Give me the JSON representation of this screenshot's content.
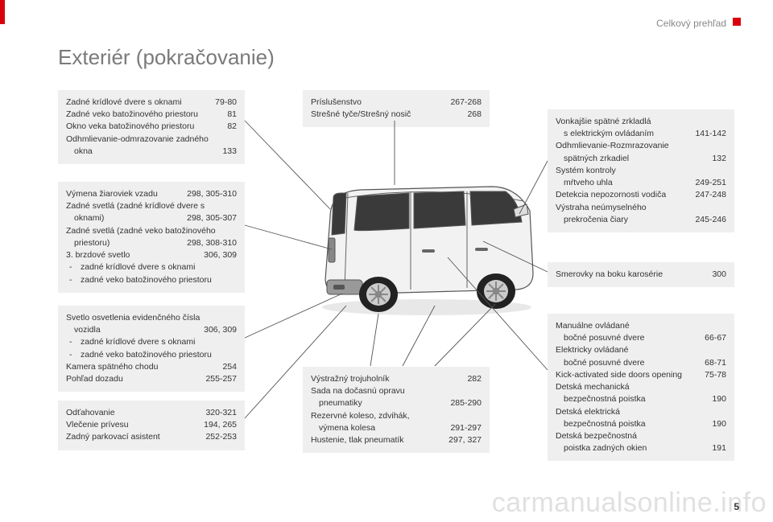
{
  "header": {
    "section": "Celkový prehľad"
  },
  "title": "Exteriér (pokračovanie)",
  "pageNumber": "5",
  "watermark": "carmanualsonline.info",
  "colors": {
    "accent": "#d9000d",
    "box_bg": "#efefef",
    "text": "#333333",
    "muted": "#7a7a7a"
  },
  "boxes": {
    "b1": {
      "rows": [
        {
          "label": "Zadné krídlové dvere s oknami",
          "page": "79-80"
        },
        {
          "label": "Zadné veko batožinového priestoru",
          "page": "81"
        },
        {
          "label": "Okno veka batožinového priestoru",
          "page": "82"
        },
        {
          "label": "Odhmlievanie-odmrazovanie zadného",
          "page": ""
        },
        {
          "label": "okna",
          "page": "133",
          "sub": true
        }
      ]
    },
    "b2": {
      "rows": [
        {
          "label": "Výmena žiaroviek vzadu",
          "page": "298, 305-310"
        },
        {
          "label": "Zadné svetlá (zadné krídlové dvere s",
          "page": ""
        },
        {
          "label": "oknami)",
          "page": "298, 305-307",
          "sub": true
        },
        {
          "label": "Zadné svetlá (zadné veko batožinového",
          "page": ""
        },
        {
          "label": "priestoru)",
          "page": "298, 308-310",
          "sub": true
        },
        {
          "label": "3. brzdové svetlo",
          "page": "306, 309"
        },
        {
          "label": "zadné krídlové dvere s oknami",
          "page": "",
          "bullet": true
        },
        {
          "label": "zadné veko batožinového priestoru",
          "page": "",
          "bullet": true
        }
      ]
    },
    "b3": {
      "rows": [
        {
          "label": "Svetlo osvetlenia evidenčného čísla",
          "page": ""
        },
        {
          "label": "vozidla",
          "page": "306, 309",
          "sub": true
        },
        {
          "label": "zadné krídlové dvere s oknami",
          "page": "",
          "bullet": true
        },
        {
          "label": "zadné veko batožinového priestoru",
          "page": "",
          "bullet": true
        },
        {
          "label": "Kamera spätného chodu",
          "page": "254"
        },
        {
          "label": "Pohľad dozadu",
          "page": "255-257"
        }
      ]
    },
    "b4": {
      "rows": [
        {
          "label": "Odťahovanie",
          "page": "320-321"
        },
        {
          "label": "Vlečenie prívesu",
          "page": "194, 265"
        },
        {
          "label": "Zadný parkovací asistent",
          "page": "252-253"
        }
      ]
    },
    "b5": {
      "rows": [
        {
          "label": "Príslušenstvo",
          "page": "267-268"
        },
        {
          "label": "Strešné tyče/Strešný nosič",
          "page": "268"
        }
      ]
    },
    "b6": {
      "rows": [
        {
          "label": "Výstražný trojuholník",
          "page": "282"
        },
        {
          "label": "Sada na dočasnú opravu",
          "page": ""
        },
        {
          "label": "pneumatiky",
          "page": "285-290",
          "sub": true
        },
        {
          "label": "Rezervné koleso, zdvihák,",
          "page": ""
        },
        {
          "label": "výmena kolesa",
          "page": "291-297",
          "sub": true
        },
        {
          "label": "Hustenie, tlak pneumatík",
          "page": "297, 327"
        }
      ]
    },
    "b7": {
      "rows": [
        {
          "label": "Vonkajšie spätné zrkladlá",
          "page": ""
        },
        {
          "label": "s elektrickým ovládaním",
          "page": "141-142",
          "sub": true
        },
        {
          "label": "Odhmlievanie-Rozmrazovanie",
          "page": ""
        },
        {
          "label": "spätných zrkadiel",
          "page": "132",
          "sub": true
        },
        {
          "label": "Systém kontroly",
          "page": ""
        },
        {
          "label": "mŕtveho uhla",
          "page": "249-251",
          "sub": true
        },
        {
          "label": "Detekcia nepozornosti vodiča",
          "page": "247-248"
        },
        {
          "label": "Výstraha neúmyselného",
          "page": ""
        },
        {
          "label": "prekročenia čiary",
          "page": "245-246",
          "sub": true
        }
      ]
    },
    "b8": {
      "rows": [
        {
          "label": "Smerovky na boku karosérie",
          "page": "300"
        }
      ]
    },
    "b9": {
      "rows": [
        {
          "label": "Manuálne ovládané",
          "page": ""
        },
        {
          "label": "bočné posuvné dvere",
          "page": "66-67",
          "sub": true
        },
        {
          "label": "Elektricky ovládané",
          "page": ""
        },
        {
          "label": "bočné posuvné dvere",
          "page": "68-71",
          "sub": true
        },
        {
          "label": "Kick-activated side doors opening",
          "page": "75-78"
        },
        {
          "label": "Detská mechanická",
          "page": ""
        },
        {
          "label": "bezpečnostná poistka",
          "page": "190",
          "sub": true
        },
        {
          "label": "Detská elektrická",
          "page": ""
        },
        {
          "label": "bezpečnostná poistka",
          "page": "190",
          "sub": true
        },
        {
          "label": "Detská bezpečnostná",
          "page": ""
        },
        {
          "label": "poistka zadných okien",
          "page": "191",
          "sub": true
        }
      ]
    }
  }
}
